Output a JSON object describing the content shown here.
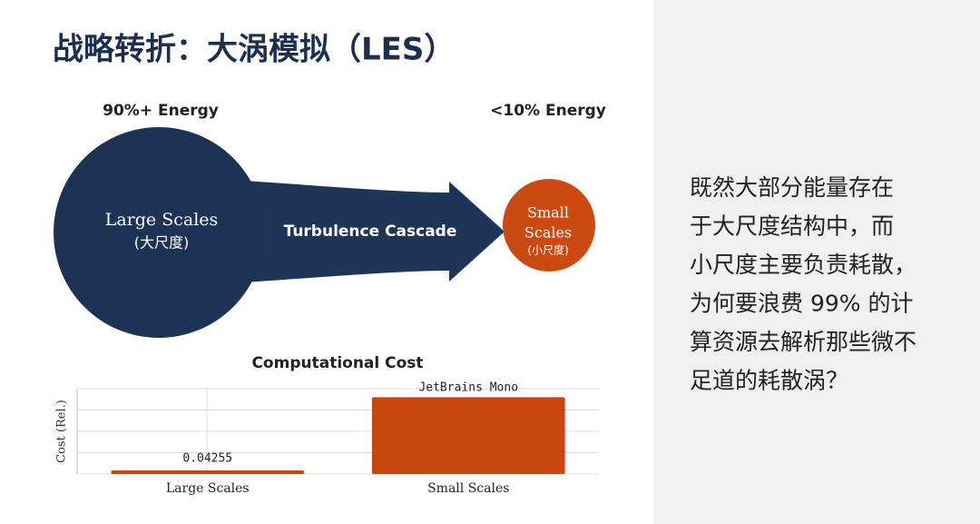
{
  "title": "战略转折：大涡模拟（LES）",
  "diagram": {
    "large": {
      "energy": "90%+ Energy",
      "label": "Large Scales",
      "sublabel": "(大尺度)"
    },
    "arrow": "Turbulence Cascade",
    "small": {
      "energy": "<10% Energy",
      "label_lines": [
        "Small",
        "Scales"
      ],
      "sublabel": "(小尺度)"
    }
  },
  "chart_data": {
    "type": "bar",
    "title": "Computational Cost",
    "y_label": "Cost (Rel.)",
    "categories": [
      "Large Scales",
      "Small Scales"
    ],
    "values": [
      0.04255,
      0.9
    ],
    "value_labels": [
      "0.04255",
      null
    ],
    "annotation": "JetBrains Mono",
    "color": "#c8470f",
    "ylim": [
      0,
      1
    ],
    "yticks": [
      0,
      0.25,
      0.5,
      0.75,
      1
    ],
    "grid": true
  },
  "side_text": [
    "既然大部分能量存在",
    "于大尺度结构中，而",
    "小尺度主要负责耗散，",
    "为何要浪费 99% 的计",
    "算资源去解析那些微不",
    "足道的耗散涡？"
  ]
}
